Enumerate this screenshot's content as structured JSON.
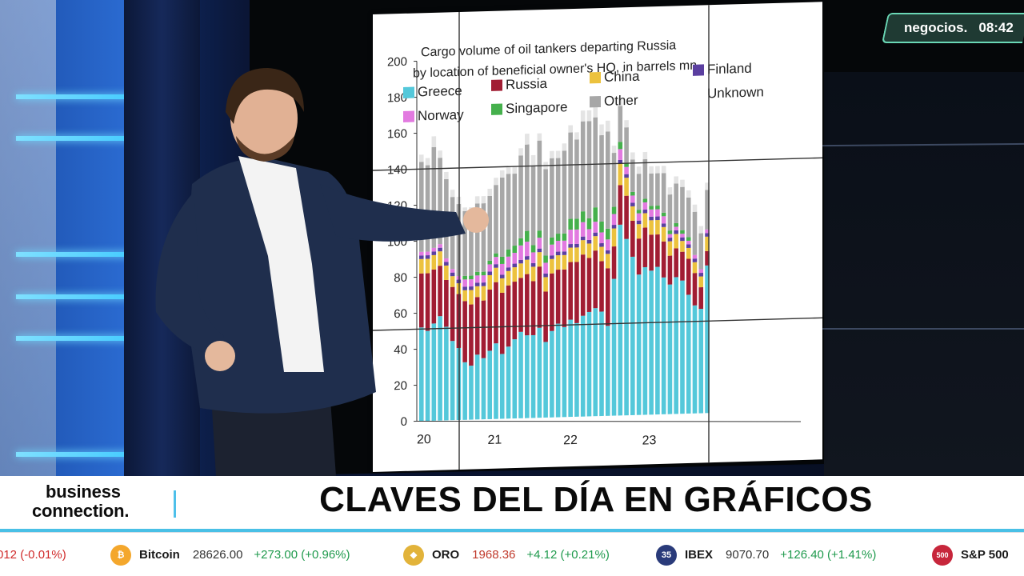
{
  "channel": {
    "name": "negocios.",
    "time": "08:42"
  },
  "lower_third": {
    "brand_line1": "business",
    "brand_line2": "connection.",
    "headline": "CLAVES DEL DÍA EN GRÁFICOS"
  },
  "ticker": {
    "items": [
      {
        "name": "",
        "price": "",
        "change": "012 (-0.01%)",
        "direction": "down",
        "icon": ""
      },
      {
        "name": "Bitcoin",
        "price": "28626.00",
        "change": "+273.00 (+0.96%)",
        "direction": "up",
        "icon": "bitcoin-icon",
        "icon_glyph": "₿",
        "icon_color": "#f4a72c"
      },
      {
        "name": "ORO",
        "price": "1968.36",
        "change": "+4.12 (+0.21%)",
        "direction": "up",
        "icon": "gold-icon",
        "icon_glyph": "◆",
        "icon_color": "#e2b33a",
        "price_red": true
      },
      {
        "name": "IBEX",
        "price": "9070.70",
        "change": "+126.40 (+1.41%)",
        "direction": "up",
        "icon": "ibex-icon",
        "icon_glyph": "35",
        "icon_color": "#2a3b7a"
      },
      {
        "name": "S&P 500",
        "price": "",
        "change": "",
        "direction": "up",
        "icon": "sp500-icon",
        "icon_glyph": "500",
        "icon_color": "#c7263b"
      }
    ]
  },
  "chart_data": {
    "type": "bar",
    "title": "Cargo volume of oil tankers departing Russia by location of beneficial owner's HQ, in barrels mn",
    "stacked": true,
    "ylim": [
      0,
      200
    ],
    "yticks": [
      0,
      20,
      40,
      60,
      80,
      100,
      120,
      140,
      160,
      180,
      200
    ],
    "xticks": [
      "20",
      "21",
      "22",
      "23"
    ],
    "legend": [
      "Greece",
      "Russia",
      "China",
      "Finland",
      "Norway",
      "Singapore",
      "Other",
      "Unknown"
    ],
    "legend_placement": "top",
    "grid": false,
    "colors": {
      "Greece": "#54c8da",
      "Russia": "#a11d33",
      "China": "#ecc23e",
      "Finland": "#5b3fa0",
      "Norway": "#e27ae0",
      "Singapore": "#45b04c",
      "Other": "#a7a7a7",
      "Unknown": "#e4e4e4"
    },
    "series": [
      {
        "name": "Greece",
        "values": [
          52,
          50,
          54,
          58,
          52,
          44,
          40,
          32,
          30,
          36,
          34,
          38,
          42,
          36,
          40,
          44,
          48,
          46,
          46,
          50,
          42,
          48,
          52,
          50,
          54,
          52,
          56,
          58,
          60,
          58,
          50,
          76,
          106,
          98,
          88,
          78,
          82,
          80,
          82,
          76,
          72,
          76,
          74,
          66,
          60,
          58,
          82
        ]
      },
      {
        "name": "Russia",
        "values": [
          30,
          32,
          30,
          28,
          26,
          30,
          30,
          34,
          34,
          32,
          32,
          34,
          34,
          34,
          34,
          32,
          30,
          34,
          30,
          34,
          28,
          32,
          30,
          32,
          32,
          34,
          34,
          30,
          32,
          28,
          32,
          18,
          22,
          24,
          20,
          20,
          22,
          20,
          18,
          20,
          16,
          16,
          16,
          20,
          18,
          12,
          8
        ]
      },
      {
        "name": "China",
        "values": [
          8,
          8,
          8,
          8,
          8,
          6,
          6,
          6,
          8,
          6,
          8,
          8,
          8,
          8,
          8,
          8,
          8,
          8,
          8,
          8,
          8,
          8,
          8,
          8,
          8,
          8,
          8,
          8,
          8,
          8,
          8,
          10,
          12,
          10,
          8,
          8,
          8,
          8,
          8,
          8,
          8,
          8,
          6,
          6,
          6,
          6,
          8
        ]
      },
      {
        "name": "Finland",
        "values": [
          2,
          2,
          2,
          2,
          2,
          2,
          2,
          2,
          2,
          2,
          2,
          2,
          2,
          2,
          2,
          2,
          2,
          2,
          2,
          2,
          2,
          2,
          2,
          2,
          2,
          2,
          2,
          2,
          2,
          2,
          2,
          2,
          2,
          2,
          2,
          2,
          2,
          2,
          2,
          2,
          2,
          2,
          2,
          2,
          2,
          2,
          2
        ]
      },
      {
        "name": "Norway",
        "values": [
          2,
          2,
          2,
          2,
          2,
          2,
          2,
          4,
          4,
          4,
          4,
          4,
          4,
          6,
          6,
          6,
          8,
          8,
          6,
          6,
          6,
          6,
          6,
          6,
          8,
          8,
          8,
          6,
          6,
          6,
          6,
          6,
          6,
          4,
          4,
          4,
          4,
          4,
          4,
          4,
          2,
          2,
          2,
          2,
          2,
          2,
          2
        ]
      },
      {
        "name": "Singapore",
        "values": [
          0,
          0,
          0,
          0,
          0,
          0,
          0,
          2,
          2,
          2,
          2,
          2,
          2,
          4,
          4,
          4,
          4,
          6,
          4,
          4,
          4,
          4,
          4,
          4,
          6,
          6,
          6,
          6,
          8,
          6,
          6,
          4,
          4,
          2,
          2,
          2,
          2,
          2,
          2,
          2,
          2,
          2,
          2,
          2,
          0,
          0,
          0
        ]
      },
      {
        "name": "Other",
        "values": [
          50,
          48,
          56,
          48,
          44,
          40,
          40,
          36,
          34,
          38,
          38,
          36,
          38,
          44,
          42,
          40,
          46,
          48,
          44,
          50,
          48,
          44,
          42,
          46,
          48,
          44,
          50,
          54,
          50,
          48,
          54,
          30,
          20,
          20,
          18,
          20,
          22,
          18,
          18,
          22,
          20,
          22,
          24,
          22,
          24,
          20,
          22
        ]
      },
      {
        "name": "Unknown",
        "values": [
          4,
          4,
          6,
          4,
          4,
          4,
          4,
          2,
          4,
          4,
          4,
          4,
          4,
          4,
          4,
          4,
          4,
          6,
          6,
          4,
          4,
          4,
          4,
          4,
          4,
          4,
          6,
          6,
          6,
          6,
          6,
          4,
          4,
          4,
          4,
          4,
          4,
          4,
          4,
          4,
          4,
          4,
          4,
          4,
          4,
          4,
          4
        ]
      }
    ]
  }
}
